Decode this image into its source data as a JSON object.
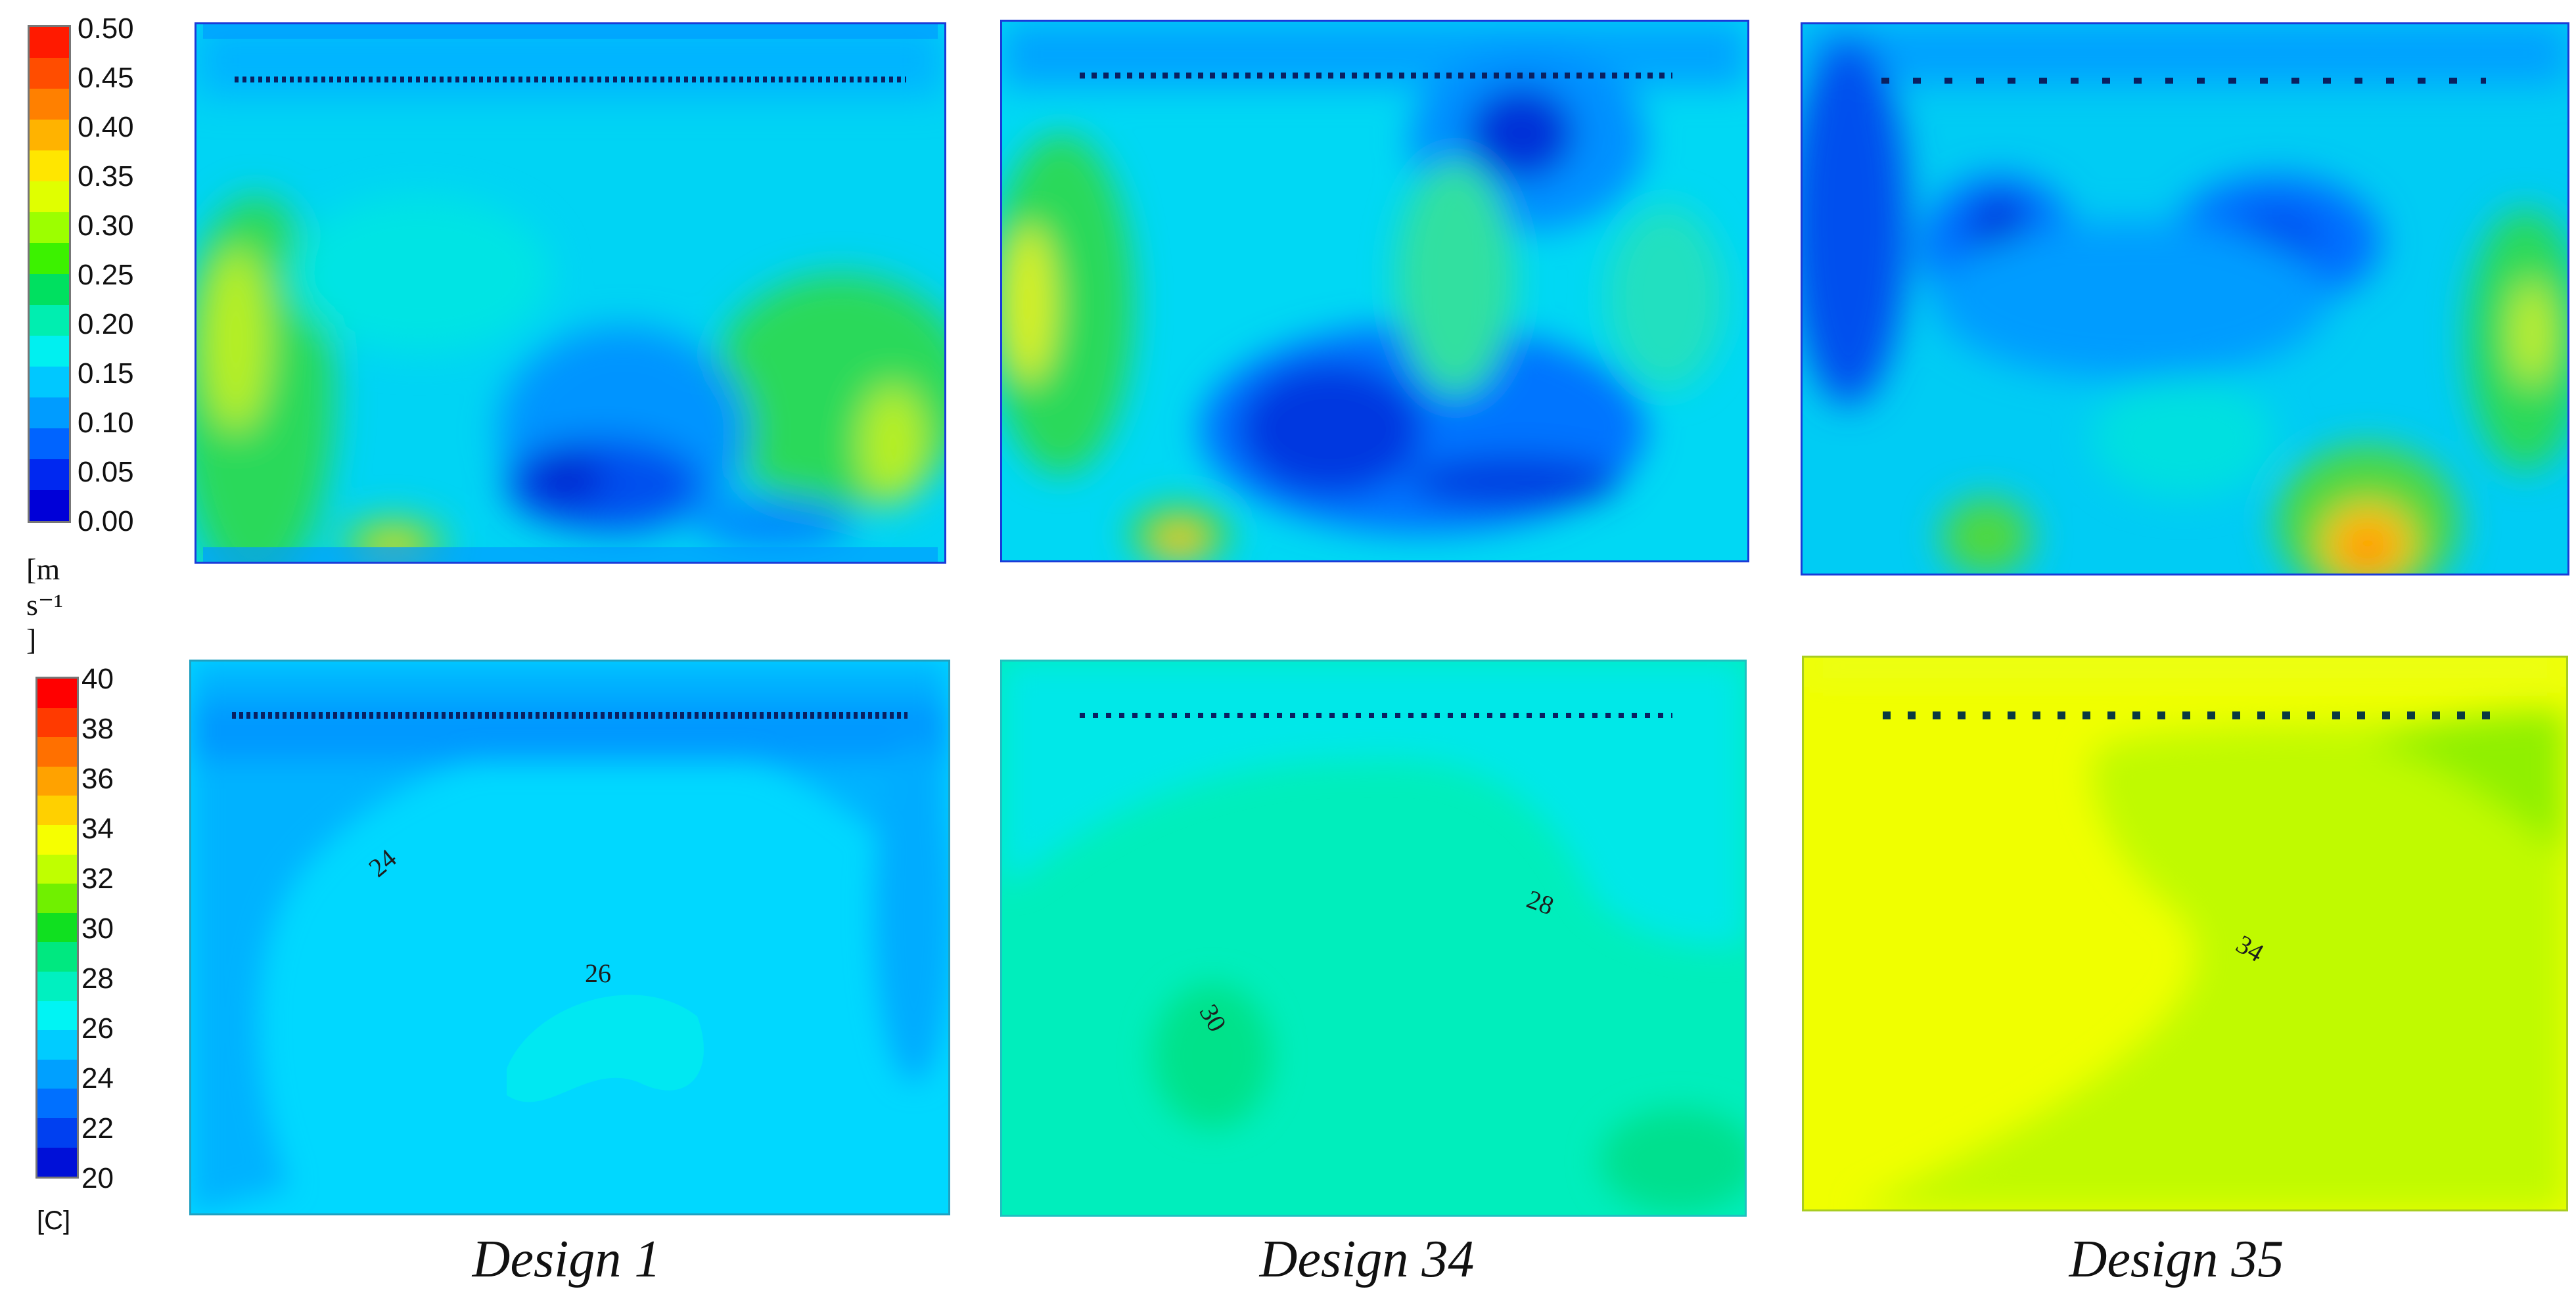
{
  "velocity_legend": {
    "ticks": [
      "0.50",
      "0.45",
      "0.40",
      "0.35",
      "0.30",
      "0.25",
      "0.20",
      "0.15",
      "0.10",
      "0.05",
      "0.00"
    ],
    "unit": "[m s⁻¹ ]"
  },
  "temperature_legend": {
    "ticks": [
      "40",
      "38",
      "36",
      "34",
      "32",
      "30",
      "28",
      "26",
      "24",
      "22",
      "20"
    ],
    "unit": "[C]"
  },
  "temperature_isolines": {
    "design1": [
      "24",
      "26"
    ],
    "design34": [
      "28",
      "30"
    ],
    "design35": [
      "34"
    ]
  },
  "captions": [
    "Design 1",
    "Design 34",
    "Design 35"
  ]
}
